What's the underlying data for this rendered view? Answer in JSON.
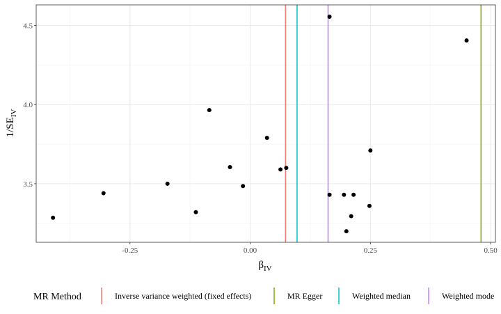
{
  "chart_data": {
    "type": "scatter",
    "xlabel": {
      "main": "β",
      "sub": "IV"
    },
    "ylabel": {
      "main": "1/SE",
      "sub": "IV"
    },
    "xlim": [
      -0.445,
      0.51
    ],
    "ylim": [
      3.13,
      4.63
    ],
    "x_ticks": [
      {
        "value": -0.25,
        "label": "-0.25"
      },
      {
        "value": 0.0,
        "label": "0.00"
      },
      {
        "value": 0.25,
        "label": "0.25"
      },
      {
        "value": 0.5,
        "label": "0.50"
      }
    ],
    "x_minor_ticks": [
      -0.375,
      -0.125,
      0.125,
      0.375
    ],
    "y_ticks": [
      {
        "value": 3.5,
        "label": "3.5"
      },
      {
        "value": 4.0,
        "label": "4.0"
      },
      {
        "value": 4.5,
        "label": "4.5"
      }
    ],
    "y_minor_ticks": [
      3.25,
      3.75,
      4.25
    ],
    "grid": true,
    "points": [
      {
        "x": -0.41,
        "y": 3.285
      },
      {
        "x": -0.305,
        "y": 3.44
      },
      {
        "x": -0.172,
        "y": 3.5
      },
      {
        "x": -0.113,
        "y": 3.32
      },
      {
        "x": -0.085,
        "y": 3.965
      },
      {
        "x": -0.042,
        "y": 3.605
      },
      {
        "x": -0.015,
        "y": 3.485
      },
      {
        "x": 0.035,
        "y": 3.79
      },
      {
        "x": 0.063,
        "y": 3.59
      },
      {
        "x": 0.075,
        "y": 3.6
      },
      {
        "x": 0.165,
        "y": 4.555
      },
      {
        "x": 0.165,
        "y": 3.43
      },
      {
        "x": 0.195,
        "y": 3.43
      },
      {
        "x": 0.2,
        "y": 3.2
      },
      {
        "x": 0.21,
        "y": 3.295
      },
      {
        "x": 0.215,
        "y": 3.43
      },
      {
        "x": 0.248,
        "y": 3.36
      },
      {
        "x": 0.25,
        "y": 3.71
      },
      {
        "x": 0.45,
        "y": 4.405
      }
    ],
    "method_lines": [
      {
        "name": "Inverse variance weighted (fixed effects)",
        "x": 0.0735,
        "color": "#f8766d"
      },
      {
        "name": "MR Egger",
        "x": 0.48,
        "color": "#7cae00"
      },
      {
        "name": "Weighted median",
        "x": 0.0975,
        "color": "#00bfc4"
      },
      {
        "name": "Weighted mode",
        "x": 0.162,
        "color": "#c77cff"
      }
    ],
    "legend": {
      "title": "MR Method",
      "position": "bottom"
    }
  }
}
